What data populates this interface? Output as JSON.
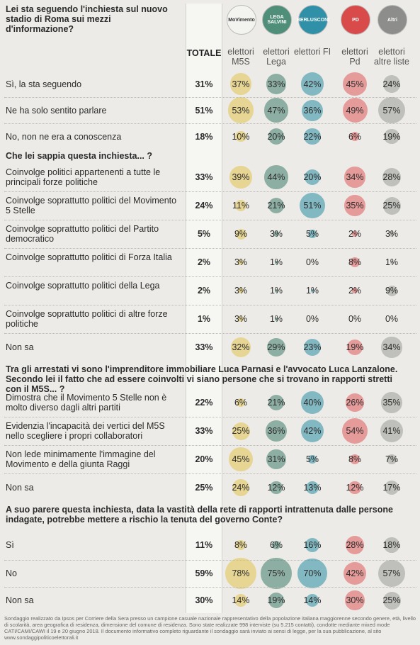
{
  "header": {
    "logos": [
      "MoVimento",
      "LEGA SALVINI",
      "BERLUSCONI",
      "PD",
      "Altri"
    ],
    "columns": [
      "TOTALE",
      "elettori M5S",
      "elettori Lega",
      "elettori FI",
      "elettori Pd",
      "elettori altre liste"
    ]
  },
  "sections": [
    {
      "question": "Lei sta seguendo l'inchiesta sul nuovo stadio di Roma sui mezzi d'informazione?",
      "rows": [
        {
          "label": "Sì, la sta seguendo",
          "values": [
            "31%",
            "37%",
            "33%",
            "42%",
            "45%",
            "24%"
          ]
        },
        {
          "label": "Ne ha solo sentito parlare",
          "values": [
            "51%",
            "53%",
            "47%",
            "36%",
            "49%",
            "57%"
          ]
        },
        {
          "label": "No, non ne era a conoscenza",
          "values": [
            "18%",
            "10%",
            "20%",
            "22%",
            "6%",
            "19%"
          ]
        }
      ]
    },
    {
      "question": "Che lei sappia questa inchiesta... ?",
      "rows": [
        {
          "label": "Coinvolge politici appartenenti a tutte le principali forze politiche",
          "values": [
            "33%",
            "39%",
            "44%",
            "20%",
            "34%",
            "28%"
          ]
        },
        {
          "label": "Coinvolge soprattutto politici del Movimento 5 Stelle",
          "values": [
            "24%",
            "11%",
            "21%",
            "51%",
            "35%",
            "25%"
          ]
        },
        {
          "label": "Coinvolge soprattutto politici del Partito democratico",
          "values": [
            "5%",
            "9%",
            "3%",
            "5%",
            "2%",
            "3%"
          ]
        },
        {
          "label": "Coinvolge soprattutto politici di Forza Italia",
          "values": [
            "2%",
            "3%",
            "1%",
            "0%",
            "8%",
            "1%"
          ]
        },
        {
          "label": "Coinvolge soprattutto politici della Lega",
          "values": [
            "2%",
            "3%",
            "1%",
            "1%",
            "2%",
            "9%"
          ]
        },
        {
          "label": "Coinvolge soprattutto politici di altre forze politiche",
          "values": [
            "1%",
            "3%",
            "1%",
            "0%",
            "0%",
            "0%"
          ]
        },
        {
          "label": "Non sa",
          "values": [
            "33%",
            "32%",
            "29%",
            "23%",
            "19%",
            "34%"
          ]
        }
      ]
    },
    {
      "question": "Tra gli arrestati vi sono l'imprenditore immobiliare Luca Parnasi e l'avvocato Luca Lanzalone. Secondo lei il fatto che ad essere coinvolti vi siano persone che si trovano in rapporti stretti con il M5S... ?",
      "rows": [
        {
          "label": "Dimostra che il Movimento 5 Stelle non è molto diverso dagli altri partiti",
          "values": [
            "22%",
            "6%",
            "21%",
            "40%",
            "26%",
            "35%"
          ]
        },
        {
          "label": "Evidenzia l'incapacità dei vertici del M5S nello scegliere i propri collaboratori",
          "values": [
            "33%",
            "25%",
            "36%",
            "42%",
            "54%",
            "41%"
          ]
        },
        {
          "label": "Non lede minimamente l'immagine del Movimento e della giunta Raggi",
          "values": [
            "20%",
            "45%",
            "31%",
            "5%",
            "8%",
            "7%"
          ]
        },
        {
          "label": "Non sa",
          "values": [
            "25%",
            "24%",
            "12%",
            "13%",
            "12%",
            "17%"
          ]
        }
      ]
    },
    {
      "question": "A suo parere questa inchiesta, data la vastità della rete di rapporti intrattenuta dalle persone indagate, potrebbe mettere a rischio la tenuta del governo Conte?",
      "rows": [
        {
          "label": "Sì",
          "values": [
            "11%",
            "8%",
            "6%",
            "16%",
            "28%",
            "18%"
          ]
        },
        {
          "label": "No",
          "values": [
            "59%",
            "78%",
            "75%",
            "70%",
            "42%",
            "57%"
          ]
        },
        {
          "label": "Non sa",
          "values": [
            "30%",
            "14%",
            "19%",
            "14%",
            "30%",
            "25%"
          ]
        }
      ]
    }
  ],
  "footer": "Sondaggio realizzato da Ipsos per Corriere della Sera presso un campione casuale nazionale rappresentativo della popolazione italiana maggiorenne secondo genere, età, livello di scolarità, area geografica di residenza, dimensione del comune di residenza. Sono state realizzate 998 interviste (su 5.215 contatti), condotte mediante mixed mode CATI/CAMI/CAWI il 19 e 20 giugno 2018. Il documento informativo completo riguardante il sondaggio sarà inviato ai sensi di legge, per la sua pubblicazione, al sito www.sondaggipoliticoelettorali.it"
}
